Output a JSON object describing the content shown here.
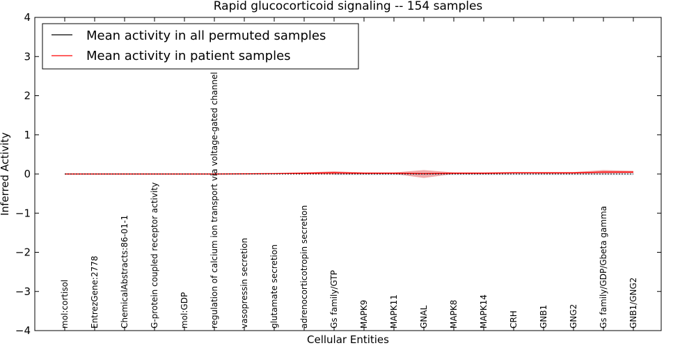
{
  "chart_data": {
    "type": "line",
    "title": "Rapid glucocorticoid signaling -- 154 samples",
    "xlabel": "Cellular Entities",
    "ylabel": "Inferred Activity",
    "ylim": [
      -4,
      4
    ],
    "yticks": [
      "4",
      "3",
      "2",
      "1",
      "0",
      "−1",
      "−2",
      "−3",
      "−4"
    ],
    "ytick_values": [
      4,
      3,
      2,
      1,
      0,
      -1,
      -2,
      -3,
      -4
    ],
    "categories": [
      "mol:cortisol",
      "EntrezGene:2778",
      "ChemicalAbstracts:86-01-1",
      "G-protein coupled receptor activity",
      "mol:GDP",
      "regulation of calcium ion transport via voltage-gated channel",
      "vasopressin secretion",
      "glutamate secretion",
      "adrenocorticotropin secretion",
      "Gs family/GTP",
      "MAPK9",
      "MAPK11",
      "GNAL",
      "MAPK8",
      "MAPK14",
      "CRH",
      "GNB1",
      "GNG2",
      "Gs family/GDP/Gbeta gamma",
      "GNB1/GNG2"
    ],
    "series": [
      {
        "name": "Mean activity in all permuted samples",
        "color": "#000000",
        "values": [
          0,
          0,
          0,
          0,
          0,
          0,
          0,
          0,
          0,
          0,
          0,
          0,
          0,
          0,
          0,
          0,
          0,
          0,
          0,
          0
        ]
      },
      {
        "name": "Mean activity in patient samples",
        "color": "#ff0000",
        "values": [
          0,
          0,
          0,
          0,
          0,
          0,
          0.005,
          0.01,
          0.02,
          0.03,
          0.02,
          0.02,
          0.01,
          0.02,
          0.02,
          0.03,
          0.03,
          0.03,
          0.05,
          0.05
        ],
        "band_upper": [
          0.005,
          0.005,
          0.005,
          0.005,
          0.005,
          0.005,
          0.01,
          0.02,
          0.04,
          0.07,
          0.04,
          0.04,
          0.1,
          0.04,
          0.04,
          0.05,
          0.05,
          0.05,
          0.1,
          0.08
        ],
        "band_lower": [
          -0.005,
          -0.005,
          -0.005,
          -0.005,
          -0.005,
          -0.005,
          0,
          0,
          0,
          -0.01,
          0,
          0,
          -0.1,
          0,
          0,
          0.01,
          0.01,
          0.01,
          0,
          0.02
        ],
        "band_color": "#e04040"
      }
    ],
    "legend": {
      "position": "top-left",
      "entries": [
        "Mean activity in all permuted samples",
        "Mean activity in patient samples"
      ]
    }
  }
}
